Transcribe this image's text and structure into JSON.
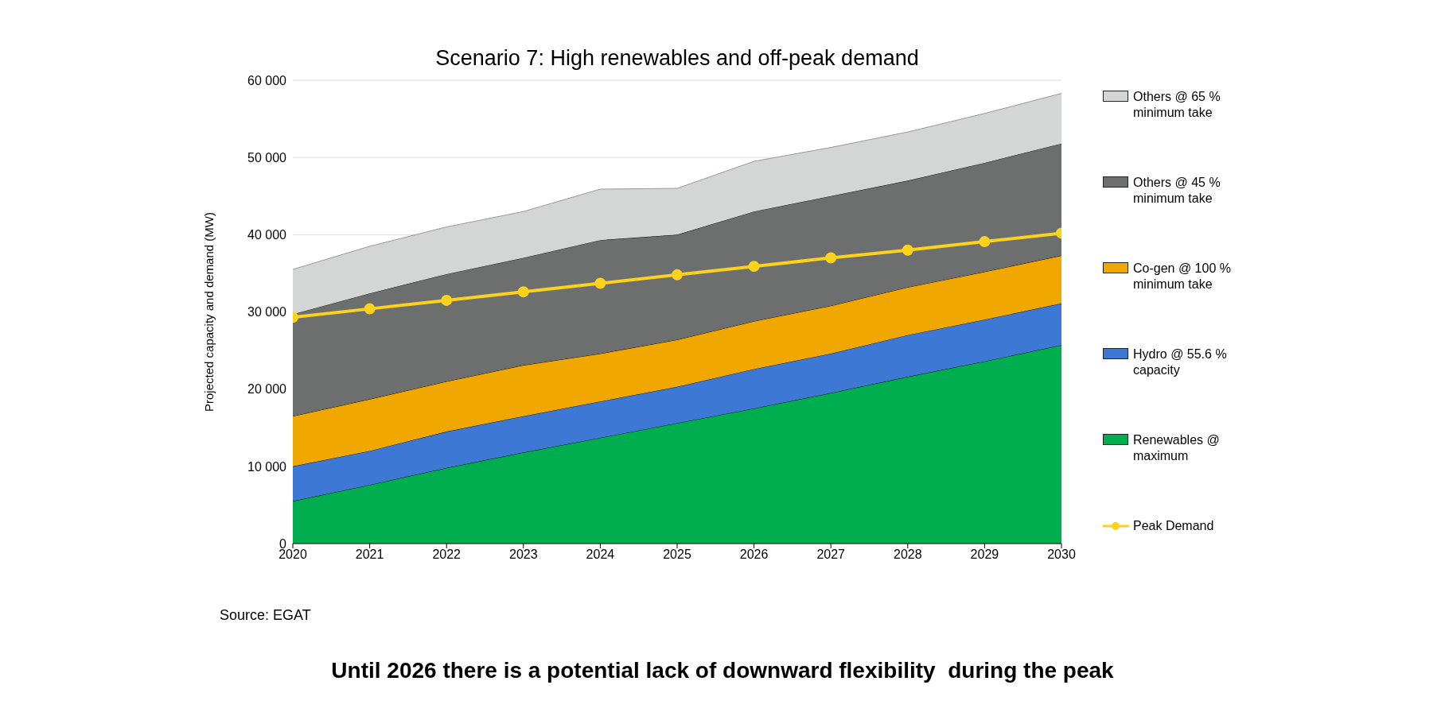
{
  "chart_data": {
    "type": "area",
    "title": "Scenario 7: High renewables and off-peak demand",
    "ylabel": "Projected capacity and demand (MW)",
    "x": [
      2020,
      2021,
      2022,
      2023,
      2024,
      2025,
      2026,
      2027,
      2028,
      2029,
      2030
    ],
    "xlim": [
      2020,
      2030
    ],
    "xticks": [
      2020,
      2021,
      2022,
      2023,
      2024,
      2025,
      2026,
      2027,
      2028,
      2029,
      2030
    ],
    "ylim": [
      0,
      60000
    ],
    "yticks": [
      0,
      {
        "value": 10000,
        "label": "10 000"
      },
      {
        "value": 20000,
        "label": "20 000"
      },
      {
        "value": 30000,
        "label": "30 000"
      },
      {
        "value": 40000,
        "label": "40 000"
      },
      {
        "value": 50000,
        "label": "50 000"
      },
      {
        "value": 60000,
        "label": "60 000"
      }
    ],
    "stacked": true,
    "grid": "y",
    "legend": "right",
    "series": [
      {
        "name": "Renewables @ maximum",
        "color": "#00ad4f",
        "values": [
          5500,
          7600,
          9800,
          11800,
          13700,
          15600,
          17500,
          19500,
          21600,
          23600,
          25700
        ]
      },
      {
        "name": "Hydro @ 55.6 % capacity",
        "color": "#3c78d4",
        "values": [
          4500,
          4400,
          4700,
          4700,
          4700,
          4700,
          5100,
          5100,
          5400,
          5400,
          5400
        ]
      },
      {
        "name": "Co-gen @ 100 % minimum take",
        "color": "#f0a800",
        "values": [
          6500,
          6700,
          6500,
          6600,
          6200,
          6100,
          6200,
          6200,
          6200,
          6200,
          6200
        ]
      },
      {
        "name": "Others @ 45 % minimum take",
        "color": "#6d6f6e",
        "values": [
          13200,
          13700,
          13900,
          13900,
          14700,
          13600,
          14200,
          14200,
          13800,
          14100,
          14500
        ]
      },
      {
        "name": "Others @ 65 % minimum take",
        "color": "#d4d5d5",
        "values": [
          5800,
          6100,
          6100,
          6000,
          6600,
          6000,
          6500,
          6300,
          6300,
          6400,
          6500
        ]
      },
      {
        "name": "Peak Demand",
        "type": "line",
        "marker": "circle",
        "color": "#fcd21c",
        "values": [
          29300,
          30400,
          31500,
          32600,
          33700,
          34800,
          35900,
          37000,
          38000,
          39100,
          40200
        ]
      }
    ],
    "annotations": [
      "Source: EGAT",
      "Until 2026 there is a potential lack of downward flexibility  during the peak"
    ]
  }
}
